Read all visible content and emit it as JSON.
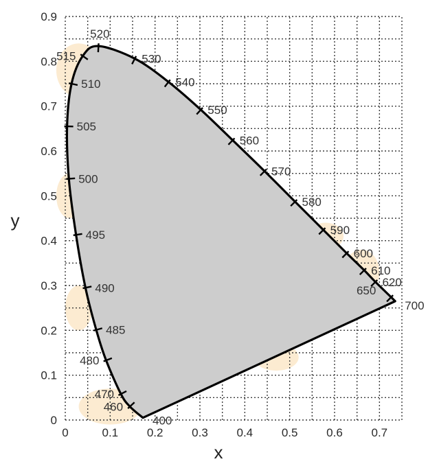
{
  "colors": {
    "locus_fill": "#cdcdcd",
    "locus_stroke": "#000000",
    "halo": "#fbe7c9",
    "grid": "#3a3a3a",
    "text": "#2a2a2a"
  },
  "chart_data": {
    "type": "scatter",
    "title": "",
    "xlabel": "x",
    "ylabel": "y",
    "xlim": [
      0,
      0.75
    ],
    "ylim": [
      0,
      0.9
    ],
    "grid": true,
    "grid_style": "dotted",
    "x_ticks": [
      {
        "value": 0,
        "label": "0"
      },
      {
        "value": 0.1,
        "label": "0.1"
      },
      {
        "value": 0.2,
        "label": "0.2"
      },
      {
        "value": 0.3,
        "label": "0.3"
      },
      {
        "value": 0.4,
        "label": "0.4"
      },
      {
        "value": 0.5,
        "label": "0.5"
      },
      {
        "value": 0.6,
        "label": "0.6"
      },
      {
        "value": 0.7,
        "label": "0.7"
      }
    ],
    "y_ticks": [
      {
        "value": 0,
        "label": "0"
      },
      {
        "value": 0.1,
        "label": "0.1"
      },
      {
        "value": 0.2,
        "label": "0.2"
      },
      {
        "value": 0.3,
        "label": "0.3"
      },
      {
        "value": 0.4,
        "label": "0.4"
      },
      {
        "value": 0.5,
        "label": "0.5"
      },
      {
        "value": 0.6,
        "label": "0.6"
      },
      {
        "value": 0.7,
        "label": "0.7"
      },
      {
        "value": 0.8,
        "label": "0.8"
      },
      {
        "value": 0.9,
        "label": "0.9"
      }
    ],
    "spectral_locus": [
      {
        "nm": "400",
        "x": 0.173,
        "y": 0.005,
        "label_side": "right"
      },
      {
        "nm": "460",
        "x": 0.144,
        "y": 0.03,
        "label_side": "left"
      },
      {
        "nm": "470",
        "x": 0.124,
        "y": 0.058,
        "label_side": "left"
      },
      {
        "nm": "480",
        "x": 0.091,
        "y": 0.133,
        "label_side": "left"
      },
      {
        "nm": "485",
        "x": 0.069,
        "y": 0.201,
        "label_side": "right"
      },
      {
        "nm": "490",
        "x": 0.045,
        "y": 0.295,
        "label_side": "right"
      },
      {
        "nm": "495",
        "x": 0.024,
        "y": 0.413,
        "label_side": "right"
      },
      {
        "nm": "500",
        "x": 0.008,
        "y": 0.538,
        "label_side": "right"
      },
      {
        "nm": "505",
        "x": 0.004,
        "y": 0.655,
        "label_side": "right"
      },
      {
        "nm": "510",
        "x": 0.014,
        "y": 0.75,
        "label_side": "right"
      },
      {
        "nm": "515",
        "x": 0.039,
        "y": 0.812,
        "label_side": "left"
      },
      {
        "nm": "520",
        "x": 0.074,
        "y": 0.834,
        "label_side": "top"
      },
      {
        "nm": "530",
        "x": 0.155,
        "y": 0.806,
        "label_side": "right"
      },
      {
        "nm": "540",
        "x": 0.23,
        "y": 0.754,
        "label_side": "right"
      },
      {
        "nm": "550",
        "x": 0.302,
        "y": 0.692,
        "label_side": "right"
      },
      {
        "nm": "560",
        "x": 0.373,
        "y": 0.624,
        "label_side": "right"
      },
      {
        "nm": "570",
        "x": 0.444,
        "y": 0.555,
        "label_side": "right"
      },
      {
        "nm": "580",
        "x": 0.512,
        "y": 0.487,
        "label_side": "right"
      },
      {
        "nm": "590",
        "x": 0.575,
        "y": 0.424,
        "label_side": "right"
      },
      {
        "nm": "600",
        "x": 0.627,
        "y": 0.372,
        "label_side": "right"
      },
      {
        "nm": "610",
        "x": 0.666,
        "y": 0.334,
        "label_side": "right"
      },
      {
        "nm": "620",
        "x": 0.691,
        "y": 0.308,
        "label_side": "right"
      },
      {
        "nm": "650",
        "x": 0.726,
        "y": 0.274,
        "label_side": "left"
      },
      {
        "nm": "700",
        "x": 0.735,
        "y": 0.265,
        "label_side": "right"
      }
    ]
  }
}
